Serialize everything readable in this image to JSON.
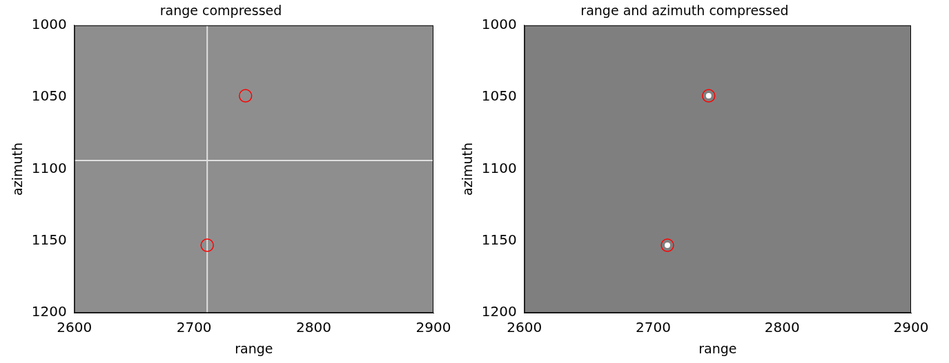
{
  "chart_data": [
    {
      "type": "scatter",
      "title": "range compressed",
      "x_label": "range",
      "y_label": "azimuth",
      "xlim": [
        2600,
        2900
      ],
      "xticks": [
        2600,
        2700,
        2800,
        2900
      ],
      "ylim": [
        1000,
        1200
      ],
      "yticks": [
        1000,
        1050,
        1100,
        1150,
        1200
      ],
      "grid": false,
      "series": [
        {
          "type": "line",
          "color": "#e0e0e0",
          "x": [
            2711,
            2711
          ],
          "y": [
            1000,
            1200
          ]
        },
        {
          "type": "line",
          "color": "#e0e0e0",
          "x": [
            2600,
            2900
          ],
          "y": [
            1094,
            1094
          ]
        },
        {
          "type": "scatter",
          "marker": "circle",
          "color": "#ff0000",
          "x": [
            2743,
            2711
          ],
          "y": [
            1049,
            1153
          ]
        }
      ]
    },
    {
      "type": "scatter",
      "title": "range and azimuth compressed",
      "x_label": "range",
      "y_label": "azimuth",
      "xlim": [
        2600,
        2900
      ],
      "xticks": [
        2600,
        2700,
        2800,
        2900
      ],
      "ylim": [
        1000,
        1200
      ],
      "yticks": [
        1000,
        1050,
        1100,
        1150,
        1200
      ],
      "grid": false,
      "series": [
        {
          "type": "scatter",
          "marker": "dot",
          "color": "#ffffff",
          "x": [
            2743,
            2711
          ],
          "y": [
            1049,
            1153
          ]
        },
        {
          "type": "scatter",
          "marker": "circle",
          "color": "#ff0000",
          "x": [
            2743,
            2711
          ],
          "y": [
            1049,
            1153
          ]
        }
      ]
    }
  ]
}
